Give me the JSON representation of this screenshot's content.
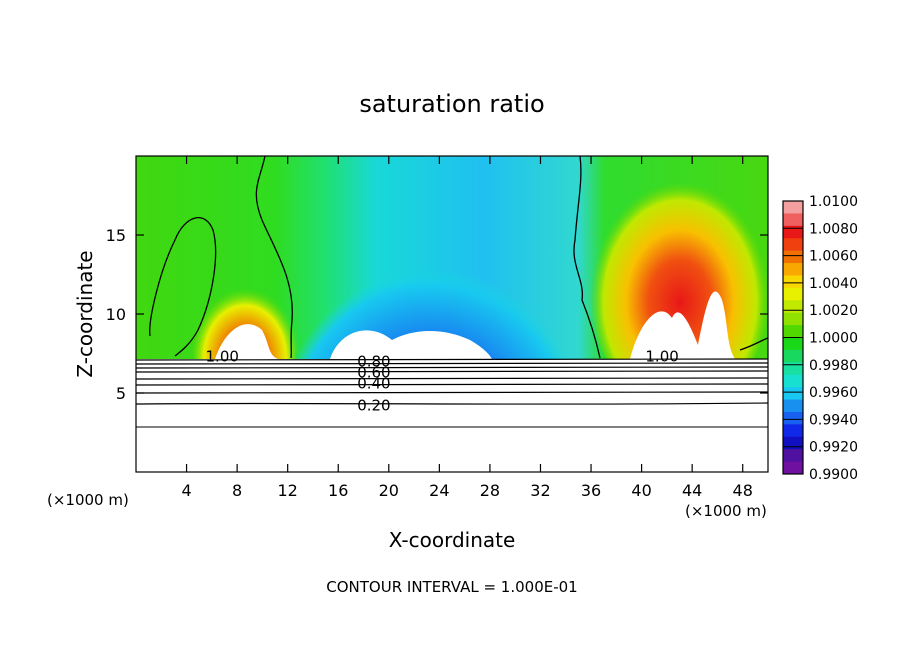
{
  "chart_data": {
    "type": "heatmap",
    "title": "saturation ratio",
    "xlabel": "X-coordinate",
    "ylabel": "Z-coordinate",
    "x_unit_left": "(×1000 m)",
    "x_unit_right": "(×1000 m)",
    "xlim": [
      0,
      50
    ],
    "ylim": [
      0,
      20
    ],
    "x_ticks": [
      4,
      8,
      12,
      16,
      20,
      24,
      28,
      32,
      36,
      40,
      44,
      48
    ],
    "y_ticks": [
      5,
      10,
      15
    ],
    "footer": "CONTOUR INTERVAL = 1.000E-01",
    "colorbar": {
      "min": 0.99,
      "max": 1.01,
      "labels": [
        "1.0100",
        "1.0080",
        "1.0060",
        "1.0040",
        "1.0020",
        "1.0000",
        "0.9980",
        "0.9960",
        "0.9940",
        "0.9920",
        "0.9900"
      ],
      "colors": [
        "#f4a0a0",
        "#f06060",
        "#e81818",
        "#f04010",
        "#f07000",
        "#f8a800",
        "#f8d800",
        "#e8f000",
        "#c0e800",
        "#90e000",
        "#50d800",
        "#18d818",
        "#18d860",
        "#18e0a0",
        "#18e0d0",
        "#18c8f0",
        "#1890f0",
        "#1860f0",
        "#1028e8",
        "#1010c0",
        "#5010a0",
        "#7010a0"
      ]
    },
    "contour_labels": [
      {
        "text": "1.00",
        "x": 5.5,
        "z": 7.3
      },
      {
        "text": "0.80",
        "x": 17.5,
        "z": 7.0
      },
      {
        "text": "0.60",
        "x": 17.5,
        "z": 6.3
      },
      {
        "text": "0.40",
        "x": 17.5,
        "z": 5.6
      },
      {
        "text": "0.20",
        "x": 17.5,
        "z": 4.2
      },
      {
        "text": "1.00",
        "x": 40.3,
        "z": 7.3
      }
    ]
  }
}
